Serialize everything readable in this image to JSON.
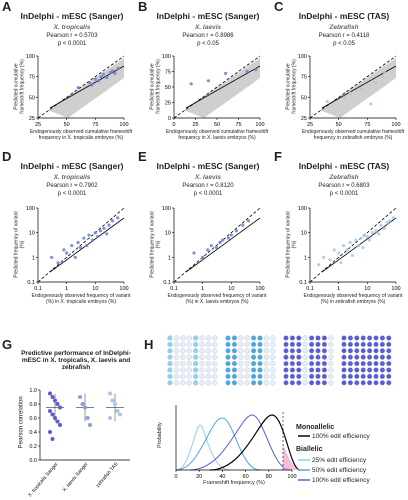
{
  "chart_data": [
    {
      "type": "scatter",
      "panel": "A",
      "title": "InDelphi - mESC (Sanger)",
      "subtitle": "X. tropicalis",
      "pearson": "Pearson r = 0.5703",
      "p_value": "p < 0.0001",
      "x_label": "Endogenously observed cumulative frameshift frequency in X. tropicalis embryos (%)",
      "y_label": "Predicted cumulative frameshift frequency (%)",
      "color": "#6b7fd7",
      "log": false,
      "xlim": [
        25,
        100
      ],
      "ylim": [
        25,
        100
      ],
      "xticks": [
        25,
        50,
        75,
        100
      ],
      "yticks": [
        25,
        50,
        75,
        100
      ],
      "x": [
        60,
        70,
        72,
        75,
        78,
        80,
        82,
        85,
        88,
        90,
        92,
        95
      ],
      "values": [
        62,
        68,
        65,
        72,
        70,
        75,
        78,
        74,
        80,
        82,
        79,
        85
      ]
    },
    {
      "type": "scatter",
      "panel": "B",
      "title": "InDelphi - mESC (Sanger)",
      "subtitle": "X. laevis",
      "pearson": "Pearson r = 0.8986",
      "p_value": "p < 0.05",
      "x_label": "Endogenously observed cumulative frameshift frequency in X. laevis embryos (%)",
      "y_label": "Predicted cumulative frameshift frequency (%)",
      "color": "#6b7fd7",
      "log": false,
      "xlim": [
        0,
        100
      ],
      "ylim": [
        0,
        100
      ],
      "xticks": [
        0,
        25,
        50,
        75,
        100
      ],
      "yticks": [
        0,
        25,
        50,
        75,
        100
      ],
      "x": [
        20,
        40,
        60,
        85,
        95
      ],
      "values": [
        55,
        60,
        72,
        75,
        78
      ]
    },
    {
      "type": "scatter",
      "panel": "C",
      "title": "InDelphi - mESC (TAS)",
      "subtitle": "Zebrafish",
      "pearson": "Pearson r = 0.4118",
      "p_value": "p < 0.05",
      "x_label": "Endogenously observed cumulative frameshift frequency in zebrafish embryos (%)",
      "y_label": "Predicted cumulative frameshift frequency (%)",
      "color": "#a9c4e8",
      "log": false,
      "xlim": [
        25,
        100
      ],
      "ylim": [
        25,
        100
      ],
      "xticks": [
        25,
        50,
        75,
        100
      ],
      "yticks": [
        25,
        50,
        75,
        100
      ],
      "x": [
        40,
        55,
        60,
        70,
        78,
        82,
        88,
        90
      ],
      "values": [
        45,
        50,
        55,
        60,
        42,
        68,
        75,
        80
      ]
    },
    {
      "type": "scatter",
      "panel": "D",
      "title": "InDelphi - mESC (Sanger)",
      "subtitle": "X. tropicalis",
      "pearson": "Pearson r = 0.7902",
      "p_value": "p < 0.0001",
      "x_label": "Endogenously observed frequency of variant (%) in X. tropicalis embryos (%)",
      "y_label": "Predicted frequency of variant (%)",
      "color": "#6b7fd7",
      "log": true,
      "xlim": [
        0.1,
        100
      ],
      "ylim": [
        0.1,
        100
      ],
      "xticks": [
        0.1,
        1,
        10,
        100
      ],
      "yticks": [
        0.1,
        1,
        10,
        100
      ],
      "x": [
        0.3,
        0.5,
        0.8,
        1,
        1.5,
        2,
        2.5,
        3,
        4,
        5,
        6,
        8,
        10,
        12,
        15,
        20,
        25,
        30,
        40,
        60
      ],
      "values": [
        1,
        0.6,
        2,
        1.5,
        3,
        1,
        4,
        2.5,
        6,
        3,
        8,
        5,
        10,
        7,
        12,
        15,
        9,
        20,
        30,
        40
      ]
    },
    {
      "type": "scatter",
      "panel": "E",
      "title": "InDelphi - mESC (Sanger)",
      "subtitle": "X. laevis",
      "pearson": "Pearson r = 0.8120",
      "p_value": "p < 0.0001",
      "x_label": "Endogenously observed frequency of variant (%) in X. laevis embryos (%)",
      "y_label": "Predicted frequency of variant (%)",
      "color": "#6b7fd7",
      "log": true,
      "xlim": [
        0.1,
        100
      ],
      "ylim": [
        0.1,
        100
      ],
      "xticks": [
        0.1,
        1,
        10,
        100
      ],
      "yticks": [
        0.1,
        1,
        10,
        100
      ],
      "x": [
        0.5,
        1,
        1.5,
        2,
        3,
        4,
        5,
        8,
        10,
        15,
        25,
        40
      ],
      "values": [
        1.5,
        1,
        2,
        3,
        2.5,
        4,
        5,
        6,
        8,
        12,
        20,
        30
      ]
    },
    {
      "type": "scatter",
      "panel": "F",
      "title": "InDelphi - mESC (TAS)",
      "subtitle": "Zebrafish",
      "pearson": "Pearson r = 0.6803",
      "p_value": "p < 0.0001",
      "x_label": "Endogenously observed frequency of variant (%) in zebrafish embryos (%)",
      "y_label": "Predicted frequency of variant (%)",
      "color": "#a9c4e8",
      "log": true,
      "xlim": [
        0.1,
        100
      ],
      "ylim": [
        0.1,
        100
      ],
      "xticks": [
        0.1,
        1,
        10,
        100
      ],
      "yticks": [
        0.1,
        1,
        10,
        100
      ],
      "x": [
        0.2,
        0.3,
        0.5,
        0.7,
        1,
        1.2,
        1.5,
        2,
        2.5,
        3,
        4,
        5,
        6,
        7,
        8,
        10,
        12,
        15,
        20,
        25,
        30,
        40,
        50,
        60,
        80
      ],
      "values": [
        0.5,
        1,
        0.8,
        2,
        1.5,
        0.6,
        3,
        2,
        4,
        1.2,
        5,
        3,
        6,
        2.5,
        8,
        7,
        5,
        10,
        12,
        9,
        20,
        15,
        25,
        30,
        40
      ]
    },
    {
      "type": "dot",
      "panel": "G",
      "title": "Predictive performance of InDelphi-mESC in X. tropicalis, X. laevis and zebrafish",
      "y_label": "Pearson correlation",
      "categories": [
        "X. tropicalis Sanger",
        "X. laevis Sanger",
        "zebrafish TAS"
      ],
      "colors": [
        "#5b5bd6",
        "#8c9be8",
        "#a9c4e8"
      ],
      "ylim": [
        0,
        1
      ],
      "yticks": [
        {
          "value": 0,
          "label": "0.0"
        },
        0.2,
        0.4,
        0.6,
        0.8,
        {
          "value": 1,
          "label": "1.0"
        }
      ],
      "values": [
        [
          0.95,
          0.9,
          0.85,
          0.8,
          0.75,
          0.7,
          0.65,
          0.6,
          0.55,
          0.5,
          0.4,
          0.3
        ],
        [
          0.9,
          0.8,
          0.75,
          0.6,
          0.5
        ],
        [
          0.95,
          0.85,
          0.8,
          0.7,
          0.65,
          0.6
        ]
      ]
    },
    {
      "type": "distribution",
      "panel": "H",
      "x_label": "Frameshift frequency (%)",
      "y_label": "Probability",
      "xlim": [
        0,
        100
      ],
      "xticks": [
        0,
        20,
        40,
        60,
        80,
        100
      ],
      "legend": [
        "Monoallelic",
        "100% edit efficiency",
        "Biallelic",
        "25% edit efficiency",
        "50% edit efficiency",
        "100% edit efficiency"
      ]
    }
  ]
}
